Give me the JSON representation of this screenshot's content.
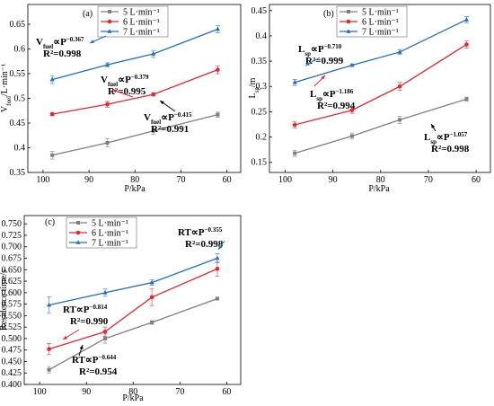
{
  "chart_data": [
    {
      "type": "line",
      "panel": "(a)",
      "xlabel": "P/kPa",
      "ylabel": {
        "main": "V",
        "sub": "fuel",
        "unit": "/L·min⁻¹"
      },
      "x": [
        98,
        86,
        76,
        62
      ],
      "xlim": [
        103.3,
        57
      ],
      "xticks": [
        100,
        90,
        80,
        70,
        60
      ],
      "ylim": [
        0.35,
        0.69
      ],
      "yticks": [
        0.35,
        0.4,
        0.45,
        0.5,
        0.55,
        0.6,
        0.65
      ],
      "series": [
        {
          "name": "5 L·min⁻¹",
          "color": "#7f7f7f",
          "marker": "square",
          "values": [
            0.385,
            0.41,
            0.434,
            0.467
          ],
          "errors": [
            0.008,
            0.008,
            0.007,
            0.005
          ]
        },
        {
          "name": "6 L·min⁻¹",
          "color": "#e8262c",
          "marker": "circle",
          "values": [
            0.468,
            0.488,
            0.508,
            0.558
          ],
          "errors": [
            0.003,
            0.006,
            0.003,
            0.008
          ]
        },
        {
          "name": "7 L·min⁻¹",
          "color": "#1f6fc4",
          "marker": "triangle",
          "values": [
            0.538,
            0.568,
            0.59,
            0.64
          ],
          "errors": [
            0.008,
            0.004,
            0.007,
            0.007
          ]
        }
      ],
      "annotations": [
        {
          "pre": "V",
          "sub": "fuel",
          "rel": "∝P",
          "sup": "−0.367",
          "r2": "R²=0.998",
          "color": "#1f6fc4"
        },
        {
          "pre": "V",
          "sub": "fuel",
          "rel": "∝P",
          "sup": "−0.379",
          "r2": "R²=0.995",
          "color": "#e8262c"
        },
        {
          "pre": "V",
          "sub": "fuel",
          "rel": "∝P",
          "sup": "−0.415",
          "r2": "R²=0.991",
          "color": "#000000"
        }
      ]
    },
    {
      "type": "line",
      "panel": "(b)",
      "xlabel": "P/kPa",
      "ylabel": {
        "main": "L",
        "sub": "sp",
        "unit": "/m"
      },
      "x": [
        98,
        86,
        76,
        62
      ],
      "xlim": [
        103.3,
        57
      ],
      "xticks": [
        100,
        90,
        80,
        70,
        60
      ],
      "ylim": [
        0.13,
        0.462
      ],
      "yticks": [
        0.15,
        0.2,
        0.25,
        0.3,
        0.35,
        0.4,
        0.45
      ],
      "series": [
        {
          "name": "5 L·min⁻¹",
          "color": "#7f7f7f",
          "marker": "square",
          "values": [
            0.168,
            0.202,
            0.234,
            0.275
          ],
          "errors": [
            0.006,
            0.006,
            0.007,
            0.004
          ]
        },
        {
          "name": "6 L·min⁻¹",
          "color": "#e8262c",
          "marker": "circle",
          "values": [
            0.224,
            0.253,
            0.3,
            0.383
          ],
          "errors": [
            0.006,
            0.006,
            0.008,
            0.007
          ]
        },
        {
          "name": "7 L·min⁻¹",
          "color": "#1f6fc4",
          "marker": "triangle",
          "values": [
            0.308,
            0.342,
            0.368,
            0.432
          ],
          "errors": [
            0.006,
            0.002,
            0.005,
            0.006
          ]
        }
      ],
      "annotations": [
        {
          "pre": "L",
          "sub": "sp",
          "rel": "∝P",
          "sup": "−0.710",
          "r2": "R²=0.999",
          "color": "#1f6fc4"
        },
        {
          "pre": "L",
          "sub": "sp",
          "rel": "∝P",
          "sup": "−1.186",
          "r2": "R²=0.994",
          "color": "#e8262c"
        },
        {
          "pre": "L",
          "sub": "sp",
          "rel": "∝P",
          "sup": "−1.057",
          "r2": "R²=0.998",
          "color": "#000000"
        }
      ]
    },
    {
      "type": "line",
      "panel": "(c)",
      "xlabel": "P/kPa",
      "ylabel": {
        "main": "Residence time/s"
      },
      "x": [
        98,
        86,
        76,
        62
      ],
      "xlim": [
        103.3,
        57
      ],
      "xticks": [
        100,
        90,
        80,
        70,
        60
      ],
      "ylim": [
        0.4,
        0.768
      ],
      "yticks": [
        {
          "value": 0.4,
          "label": "0.400"
        },
        0.425,
        {
          "value": 0.45,
          "label": "0.450"
        },
        0.475,
        {
          "value": 0.5,
          "label": "0.500"
        },
        0.525,
        {
          "value": 0.55,
          "label": "0.550"
        },
        0.575,
        {
          "value": 0.6,
          "label": "0.600"
        },
        0.625,
        {
          "value": 0.65,
          "label": "0.650"
        },
        0.675,
        {
          "value": 0.7,
          "label": "0.700"
        },
        0.725,
        {
          "value": 0.75,
          "label": "0.750"
        }
      ],
      "series": [
        {
          "name": "5 L·min⁻¹",
          "color": "#7f7f7f",
          "marker": "square",
          "values": [
            0.432,
            0.5,
            0.535,
            0.587
          ],
          "errors": [
            0.007,
            0.01,
            0.004,
            0.003
          ]
        },
        {
          "name": "6 L·min⁻¹",
          "color": "#e8262c",
          "marker": "circle",
          "values": [
            0.477,
            0.515,
            0.59,
            0.652
          ],
          "errors": [
            0.012,
            0.01,
            0.018,
            0.016
          ]
        },
        {
          "name": "7 L·min⁻¹",
          "color": "#1f6fc4",
          "marker": "triangle",
          "values": [
            0.573,
            0.6,
            0.622,
            0.675
          ],
          "errors": [
            0.018,
            0.008,
            0.006,
            0.01
          ]
        }
      ],
      "annotations": [
        {
          "pre": "RT",
          "rel": "∝P",
          "sup": "−0.355",
          "r2": "R²=0.998",
          "color": "#1f6fc4"
        },
        {
          "pre": "RT",
          "rel": "∝P",
          "sup": "−0.814",
          "r2": "R²=0.990",
          "color": "#e8262c"
        },
        {
          "pre": "RT",
          "rel": "∝P",
          "sup": "−0.644",
          "r2": "R²=0.954",
          "color": "#000000"
        }
      ]
    }
  ]
}
